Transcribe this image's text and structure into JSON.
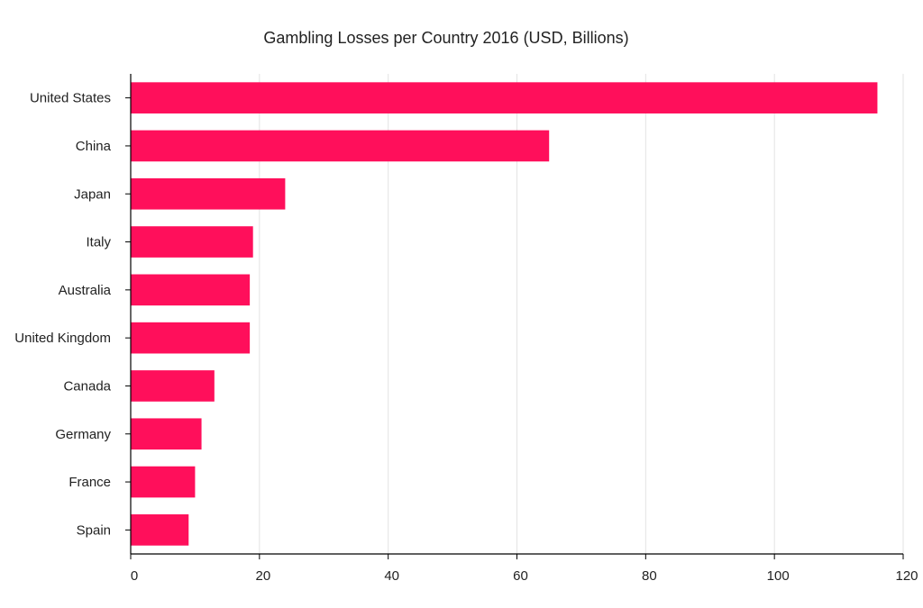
{
  "chart_data": {
    "type": "bar",
    "orientation": "horizontal",
    "title": "Gambling Losses per Country 2016 (USD, Billions)",
    "xlabel": "",
    "ylabel": "",
    "categories": [
      "United States",
      "China",
      "Japan",
      "Italy",
      "Australia",
      "United Kingdom",
      "Canada",
      "Germany",
      "France",
      "Spain"
    ],
    "values": [
      116,
      65,
      24,
      19,
      18.5,
      18.5,
      13,
      11,
      10,
      9
    ],
    "xlim": [
      0,
      120
    ],
    "xticks": [
      "0",
      "20",
      "40",
      "60",
      "80",
      "100",
      "120"
    ],
    "grid": "vertical",
    "bar_color": "#ff0f5b",
    "gridline_color": "#e3e3e3",
    "axis_color": "#000000"
  }
}
